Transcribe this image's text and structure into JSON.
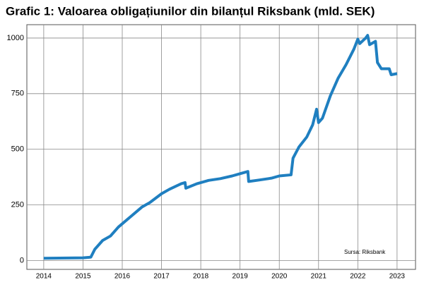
{
  "chart_data": {
    "type": "line",
    "title": "Grafic 1: Valoarea obligațiunilor din bilanțul Riksbank (mld. SEK)",
    "annotation": "Sursa: Riksbank",
    "series": [
      {
        "name": "Obligațiuni",
        "color": "#1f7fc0",
        "x": [
          2014.0,
          2015.0,
          2015.2,
          2015.3,
          2015.5,
          2015.7,
          2015.9,
          2016.0,
          2016.2,
          2016.5,
          2016.7,
          2017.0,
          2017.2,
          2017.5,
          2017.6,
          2017.62,
          2017.9,
          2018.2,
          2018.5,
          2018.8,
          2019.0,
          2019.2,
          2019.22,
          2019.5,
          2019.8,
          2020.0,
          2020.3,
          2020.35,
          2020.5,
          2020.7,
          2020.85,
          2020.95,
          2021.0,
          2021.1,
          2021.3,
          2021.5,
          2021.7,
          2021.9,
          2022.0,
          2022.05,
          2022.2,
          2022.25,
          2022.3,
          2022.45,
          2022.5,
          2022.6,
          2022.8,
          2022.85,
          2023.0
        ],
        "values": [
          10,
          12,
          15,
          50,
          90,
          110,
          150,
          165,
          195,
          240,
          260,
          300,
          320,
          345,
          350,
          325,
          345,
          360,
          368,
          380,
          390,
          400,
          355,
          362,
          370,
          380,
          385,
          460,
          510,
          555,
          610,
          680,
          620,
          640,
          740,
          820,
          880,
          950,
          995,
          975,
          1000,
          1012,
          970,
          985,
          890,
          862,
          862,
          835,
          840
        ]
      }
    ],
    "xlim": [
      2013.57,
      2023.47
    ],
    "xticks": [
      2014,
      2015,
      2016,
      2017,
      2018,
      2019,
      2020,
      2021,
      2022,
      2023
    ],
    "ylim": [
      -40,
      1060
    ],
    "yticks": [
      0,
      250,
      500,
      750,
      1000
    ],
    "grid": true
  }
}
